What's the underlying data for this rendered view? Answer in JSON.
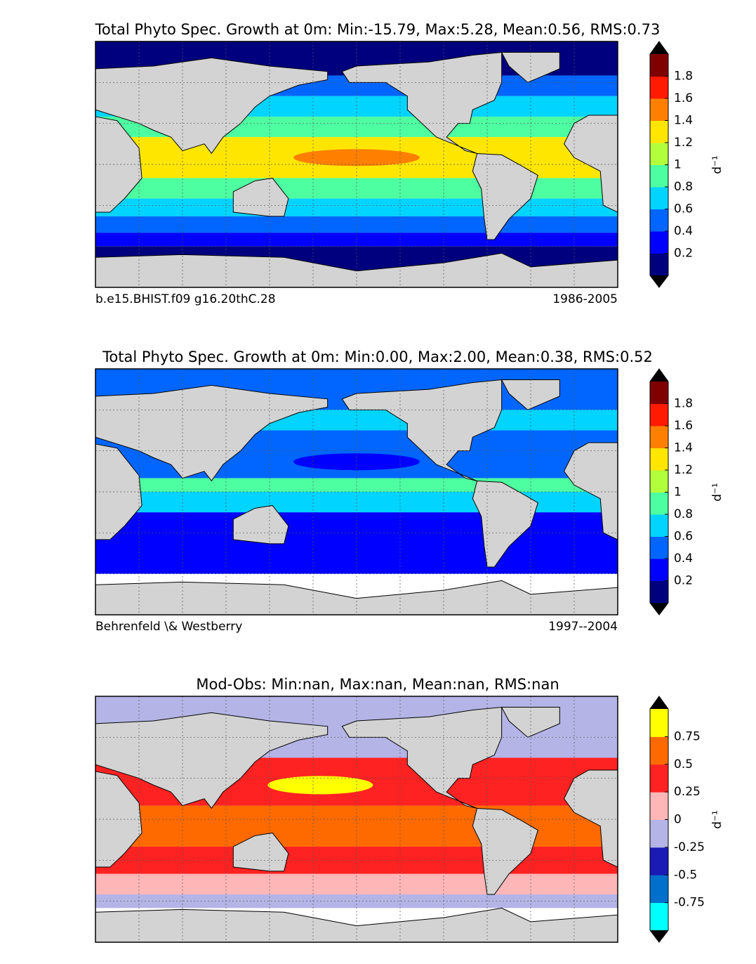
{
  "panels": [
    {
      "title": "Total Phyto Spec. Growth at 0m: Min:-15.79, Max:5.28, Mean:0.56, RMS:0.73",
      "left_label": "b.e15.BHIST.f09 g16.20thC.28",
      "right_label": "1986-2005",
      "colorbar": {
        "label": "d⁻¹",
        "lim": [
          0,
          2
        ],
        "ticks": [
          0.2,
          0.4,
          0.6,
          0.8,
          1,
          1.2,
          1.4,
          1.6,
          1.8
        ],
        "colors": [
          "#00007f",
          "#0000ff",
          "#0066ff",
          "#00d4ff",
          "#4dffa0",
          "#b2ff3c",
          "#ffe600",
          "#ff8000",
          "#ff1a00",
          "#800000"
        ],
        "extend_color": "#000000"
      }
    },
    {
      "title": "Total Phyto Spec. Growth at 0m: Min:0.00, Max:2.00, Mean:0.38, RMS:0.52",
      "left_label": "Behrenfeld \\& Westberry",
      "right_label": "1997--2004",
      "colorbar": {
        "label": "d⁻¹",
        "lim": [
          0,
          2
        ],
        "ticks": [
          0.2,
          0.4,
          0.6,
          0.8,
          1,
          1.2,
          1.4,
          1.6,
          1.8
        ],
        "colors": [
          "#00007f",
          "#0000ff",
          "#0066ff",
          "#00d4ff",
          "#4dffa0",
          "#b2ff3c",
          "#ffe600",
          "#ff8000",
          "#ff1a00",
          "#800000"
        ],
        "extend_color": "#000000"
      }
    },
    {
      "title": "Mod-Obs: Min:nan, Max:nan, Mean:nan, RMS:nan",
      "colorbar": {
        "label": "d⁻¹",
        "lim": [
          -1,
          1
        ],
        "ticks": [
          -0.75,
          -0.5,
          -0.25,
          0,
          0.25,
          0.5,
          0.75
        ],
        "colors": [
          "#00ffff",
          "#0070cc",
          "#1a1ab4",
          "#b4b4e6",
          "#ffb6b6",
          "#ff2222",
          "#ff6a00",
          "#ffff00"
        ],
        "extend_color": "#000000"
      }
    }
  ]
}
